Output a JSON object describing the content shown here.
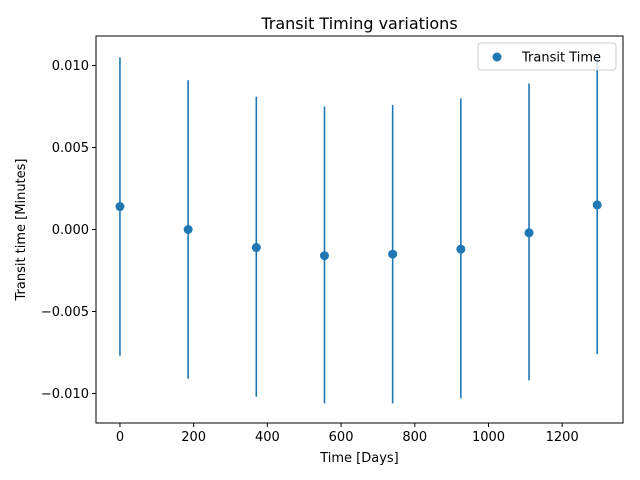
{
  "chart_data": {
    "type": "scatter",
    "title": "Transit Timing variations",
    "xlabel": "Time [Days]",
    "ylabel": "Transit time [Minutes]",
    "xlim": [
      -65,
      1365
    ],
    "ylim": [
      -0.0118,
      0.0118
    ],
    "xticks": [
      0,
      200,
      400,
      600,
      800,
      1000,
      1200
    ],
    "xtick_labels": [
      "0",
      "200",
      "400",
      "600",
      "800",
      "1000",
      "1200"
    ],
    "yticks": [
      -0.01,
      -0.005,
      0.0,
      0.005,
      0.01
    ],
    "ytick_labels": [
      "−0.010",
      "−0.005",
      "0.000",
      "0.005",
      "0.010"
    ],
    "grid": false,
    "legend_position": "top-right",
    "series": [
      {
        "name": "Transit Time",
        "color": "#1f77b4",
        "x": [
          0,
          185,
          370,
          555,
          740,
          925,
          1110,
          1295
        ],
        "y": [
          0.0014,
          0.0,
          -0.0011,
          -0.0016,
          -0.0015,
          -0.0012,
          -0.0002,
          0.0015
        ],
        "yerr_low": [
          -0.0077,
          -0.0091,
          -0.0102,
          -0.0106,
          -0.0106,
          -0.0103,
          -0.0092,
          -0.0076
        ],
        "yerr_high": [
          0.0105,
          0.0091,
          0.0081,
          0.0075,
          0.0076,
          0.008,
          0.0089,
          0.0106
        ]
      }
    ]
  }
}
